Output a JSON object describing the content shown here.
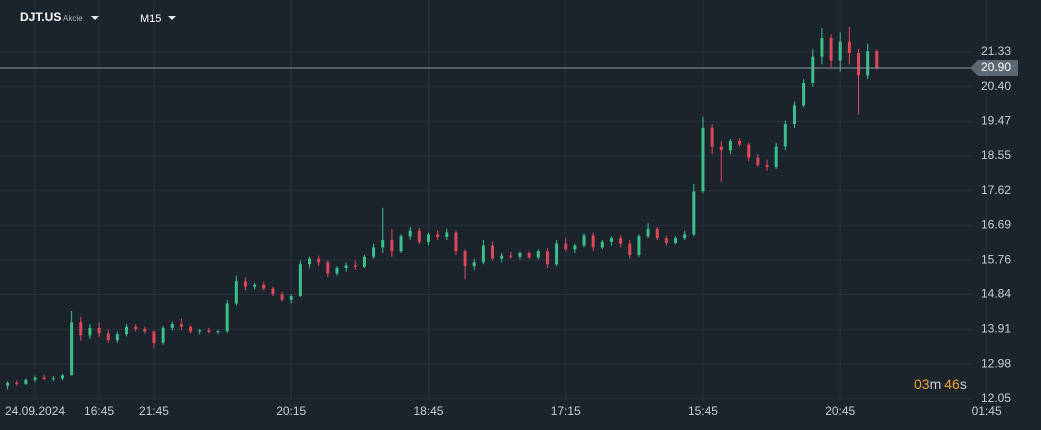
{
  "header": {
    "symbol": "DJT.US",
    "asset_class": "Akcie",
    "timeframe": "M15"
  },
  "countdown": {
    "minutes": "03",
    "minutes_unit": "m",
    "seconds": "46",
    "seconds_unit": "s"
  },
  "chart_data": {
    "type": "candlestick",
    "up_color": "#3cc08c",
    "down_color": "#e0475d",
    "grid": true,
    "ylim": [
      12.02,
      22.45
    ],
    "yticks": [
      12.05,
      12.98,
      13.91,
      14.84,
      15.76,
      16.69,
      17.62,
      18.55,
      19.47,
      {
        "value": 20.4,
        "label": "20.40"
      },
      21.33
    ],
    "last_price": {
      "value": 20.9,
      "label": "20.90"
    },
    "categories": [
      null,
      null,
      null,
      "24.09.2024",
      null,
      null,
      null,
      null,
      null,
      null,
      "16:45",
      null,
      null,
      null,
      null,
      null,
      "21:45",
      null,
      null,
      null,
      null,
      null,
      null,
      null,
      null,
      null,
      null,
      null,
      null,
      null,
      null,
      "20:15",
      null,
      null,
      null,
      null,
      null,
      null,
      null,
      null,
      null,
      null,
      null,
      null,
      null,
      null,
      "18:45",
      null,
      null,
      null,
      null,
      null,
      null,
      null,
      null,
      null,
      null,
      null,
      null,
      null,
      null,
      "17:15",
      null,
      null,
      null,
      null,
      null,
      null,
      null,
      null,
      null,
      null,
      null,
      null,
      null,
      null,
      "15:45",
      null,
      null,
      null,
      null,
      null,
      null,
      null,
      null,
      null,
      null,
      null,
      null,
      null,
      null,
      "20:45",
      null,
      null,
      null,
      null,
      null,
      null,
      null,
      null,
      null,
      null,
      null,
      null,
      null,
      null,
      null,
      "01:45"
    ],
    "ohlc": [
      [
        12.4,
        12.52,
        12.3,
        12.48
      ],
      [
        12.48,
        12.55,
        12.4,
        12.45
      ],
      [
        12.45,
        12.6,
        12.42,
        12.56
      ],
      [
        12.56,
        12.68,
        12.5,
        12.62
      ],
      [
        12.62,
        12.7,
        12.55,
        12.58
      ],
      [
        12.58,
        12.66,
        12.52,
        12.6
      ],
      [
        12.6,
        12.72,
        12.55,
        12.68
      ],
      [
        12.68,
        14.4,
        12.68,
        14.1
      ],
      [
        14.1,
        14.25,
        13.6,
        13.75
      ],
      [
        13.75,
        14.05,
        13.65,
        13.95
      ],
      [
        13.95,
        14.1,
        13.7,
        13.8
      ],
      [
        13.8,
        13.9,
        13.55,
        13.62
      ],
      [
        13.62,
        13.85,
        13.55,
        13.78
      ],
      [
        13.78,
        14.05,
        13.72,
        13.98
      ],
      [
        13.98,
        14.05,
        13.85,
        13.92
      ],
      [
        13.92,
        13.98,
        13.8,
        13.85
      ],
      [
        13.85,
        13.9,
        13.4,
        13.55
      ],
      [
        13.55,
        14.0,
        13.5,
        13.95
      ],
      [
        13.95,
        14.12,
        13.88,
        14.05
      ],
      [
        14.05,
        14.2,
        13.9,
        13.98
      ],
      [
        13.98,
        14.02,
        13.8,
        13.85
      ],
      [
        13.85,
        13.92,
        13.78,
        13.88
      ],
      [
        13.88,
        13.95,
        13.8,
        13.84
      ],
      [
        13.84,
        13.9,
        13.78,
        13.86
      ],
      [
        13.86,
        14.7,
        13.8,
        14.6
      ],
      [
        14.6,
        15.35,
        14.55,
        15.2
      ],
      [
        15.2,
        15.3,
        14.95,
        15.05
      ],
      [
        15.05,
        15.15,
        14.98,
        15.1
      ],
      [
        15.1,
        15.18,
        14.95,
        15.0
      ],
      [
        15.0,
        15.05,
        14.8,
        14.85
      ],
      [
        14.85,
        14.92,
        14.65,
        14.7
      ],
      [
        14.7,
        14.85,
        14.6,
        14.8
      ],
      [
        14.8,
        15.75,
        14.78,
        15.65
      ],
      [
        15.65,
        15.85,
        15.55,
        15.8
      ],
      [
        15.8,
        15.88,
        15.6,
        15.7
      ],
      [
        15.7,
        15.75,
        15.3,
        15.4
      ],
      [
        15.4,
        15.6,
        15.35,
        15.55
      ],
      [
        15.55,
        15.7,
        15.45,
        15.62
      ],
      [
        15.62,
        15.75,
        15.5,
        15.58
      ],
      [
        15.58,
        15.9,
        15.55,
        15.85
      ],
      [
        15.85,
        16.2,
        15.8,
        16.1
      ],
      [
        16.1,
        17.16,
        15.95,
        16.3
      ],
      [
        16.3,
        16.6,
        15.85,
        16.0
      ],
      [
        16.0,
        16.45,
        15.95,
        16.4
      ],
      [
        16.4,
        16.65,
        16.3,
        16.55
      ],
      [
        16.55,
        16.62,
        16.2,
        16.25
      ],
      [
        16.25,
        16.5,
        16.15,
        16.45
      ],
      [
        16.45,
        16.55,
        16.3,
        16.38
      ],
      [
        16.38,
        16.6,
        16.3,
        16.5
      ],
      [
        16.5,
        16.55,
        15.9,
        16.0
      ],
      [
        16.0,
        16.05,
        15.25,
        15.6
      ],
      [
        15.6,
        15.8,
        15.5,
        15.7
      ],
      [
        15.7,
        16.3,
        15.65,
        16.15
      ],
      [
        16.15,
        16.25,
        15.75,
        15.8
      ],
      [
        15.8,
        15.95,
        15.7,
        15.88
      ],
      [
        15.88,
        15.98,
        15.8,
        15.85
      ],
      [
        15.85,
        16.0,
        15.78,
        15.95
      ],
      [
        15.95,
        16.0,
        15.8,
        15.83
      ],
      [
        15.83,
        16.05,
        15.78,
        16.0
      ],
      [
        16.0,
        16.08,
        15.55,
        15.65
      ],
      [
        15.65,
        16.3,
        15.6,
        16.2
      ],
      [
        16.2,
        16.35,
        16.0,
        16.05
      ],
      [
        16.05,
        16.2,
        15.95,
        16.15
      ],
      [
        16.15,
        16.48,
        16.1,
        16.42
      ],
      [
        16.42,
        16.5,
        16.0,
        16.1
      ],
      [
        16.1,
        16.3,
        16.05,
        16.25
      ],
      [
        16.25,
        16.4,
        16.15,
        16.35
      ],
      [
        16.35,
        16.42,
        16.1,
        16.2
      ],
      [
        16.2,
        16.3,
        15.8,
        15.9
      ],
      [
        15.9,
        16.45,
        15.85,
        16.4
      ],
      [
        16.4,
        16.75,
        16.35,
        16.6
      ],
      [
        16.6,
        16.65,
        16.3,
        16.35
      ],
      [
        16.35,
        16.42,
        16.15,
        16.22
      ],
      [
        16.22,
        16.4,
        16.18,
        16.35
      ],
      [
        16.35,
        16.55,
        16.3,
        16.45
      ],
      [
        16.45,
        17.8,
        16.4,
        17.6
      ],
      [
        17.6,
        19.6,
        17.55,
        19.3
      ],
      [
        19.3,
        19.4,
        18.6,
        18.8
      ],
      [
        18.8,
        18.95,
        17.85,
        18.7
      ],
      [
        18.7,
        19.0,
        18.6,
        18.95
      ],
      [
        18.95,
        19.02,
        18.8,
        18.85
      ],
      [
        18.85,
        18.9,
        18.4,
        18.5
      ],
      [
        18.5,
        18.6,
        18.25,
        18.3
      ],
      [
        18.3,
        18.45,
        18.15,
        18.25
      ],
      [
        18.25,
        18.9,
        18.2,
        18.8
      ],
      [
        18.8,
        19.5,
        18.7,
        19.4
      ],
      [
        19.4,
        20.0,
        19.3,
        19.9
      ],
      [
        19.9,
        20.6,
        19.85,
        20.5
      ],
      [
        20.5,
        21.4,
        20.4,
        21.2
      ],
      [
        21.2,
        21.97,
        21.0,
        21.7
      ],
      [
        21.7,
        21.8,
        20.9,
        21.1
      ],
      [
        21.1,
        21.85,
        20.8,
        21.6
      ],
      [
        21.6,
        22.0,
        21.0,
        21.3
      ],
      [
        21.3,
        21.4,
        19.65,
        20.7
      ],
      [
        20.7,
        21.55,
        20.6,
        21.35
      ],
      [
        21.35,
        21.4,
        20.85,
        20.9
      ],
      null,
      null,
      null,
      null,
      null,
      null,
      null,
      null,
      null,
      null,
      null,
      null
    ]
  }
}
